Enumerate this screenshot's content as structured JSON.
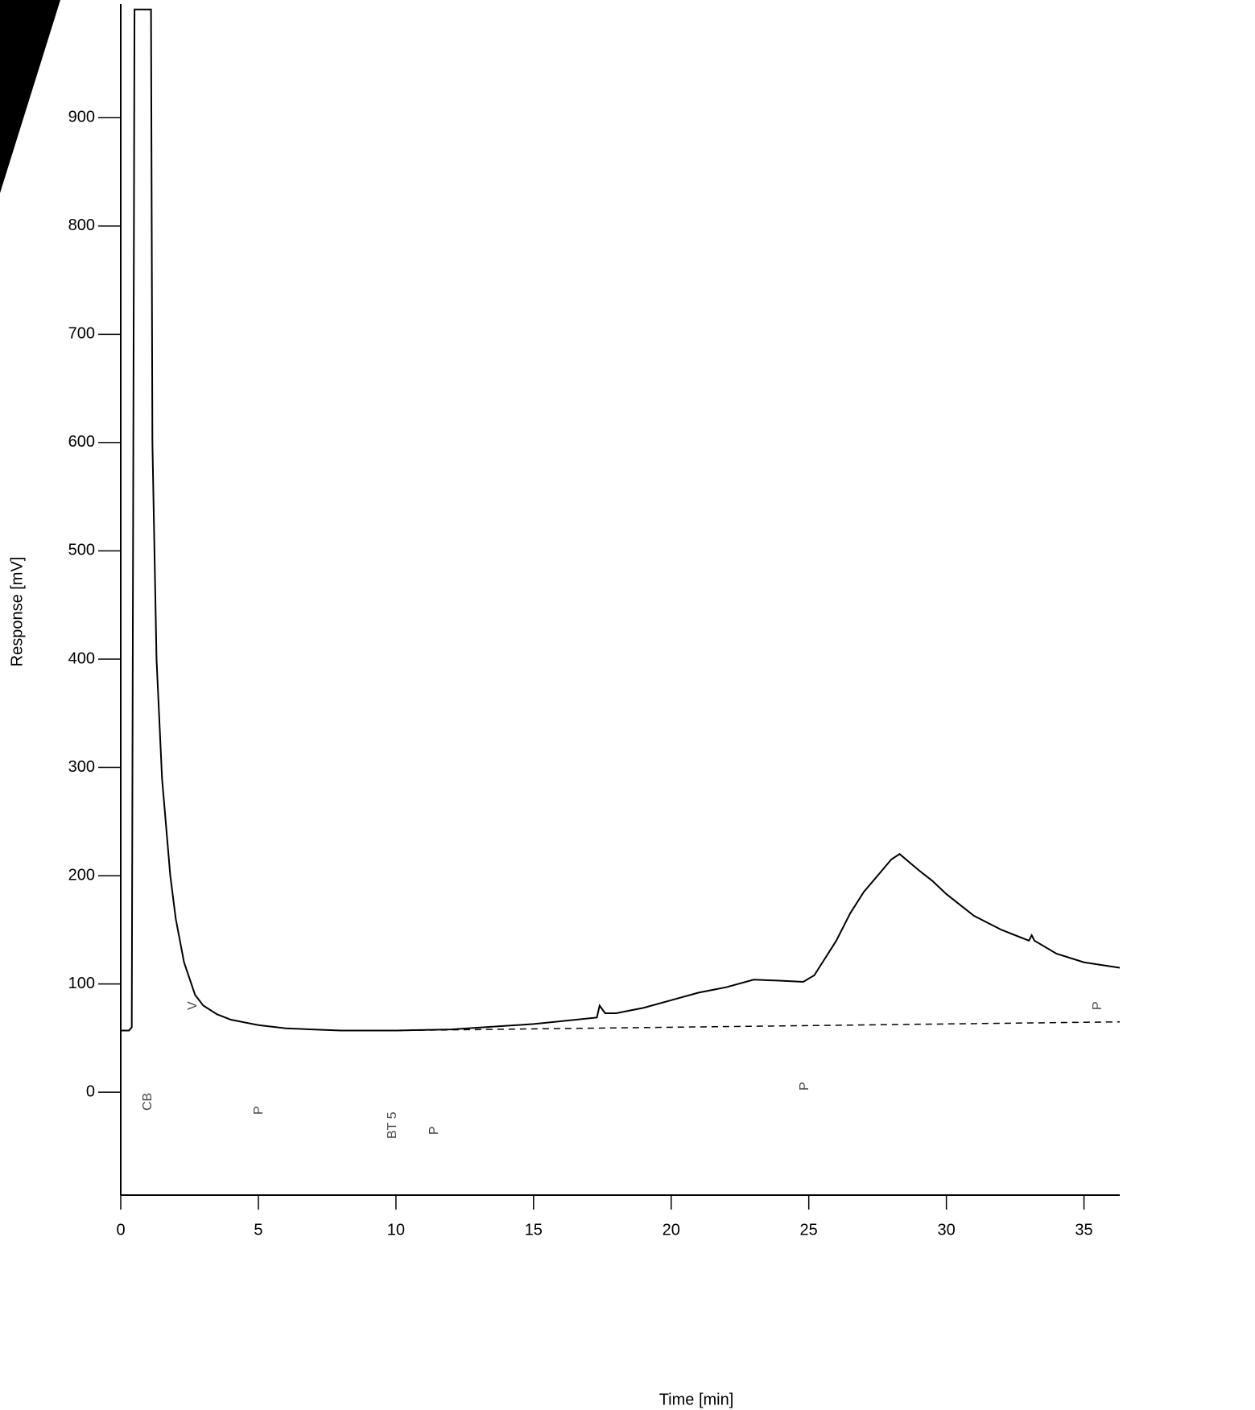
{
  "chart_data": {
    "type": "line",
    "x_label": "Time [min]",
    "y_label": "Response [mV]",
    "xlim": [
      0,
      36.3
    ],
    "ylim": [
      -95,
      1005
    ],
    "xticks": [
      0,
      5,
      10,
      15,
      20,
      25,
      30,
      35
    ],
    "yticks": [
      0,
      100,
      200,
      300,
      400,
      500,
      600,
      700,
      800,
      900
    ],
    "annotations": [
      "CB",
      "V",
      "P",
      "BT 5",
      "P",
      "P",
      "P"
    ],
    "series": [
      {
        "color": "#000000",
        "dashed": false,
        "x": [
          0,
          0.3,
          0.4,
          0.5,
          0.55,
          1.1,
          1.15,
          1.3,
          1.5,
          1.8,
          2.0,
          2.3,
          2.7,
          3.0,
          3.5,
          4,
          5,
          6,
          8,
          10,
          12,
          15,
          17.3,
          17.4,
          17.6,
          18,
          19,
          20,
          21,
          22,
          23,
          24,
          24.8,
          25.2,
          25.5,
          26,
          26.5,
          27,
          27.5,
          28,
          28.3,
          29,
          29.5,
          30,
          31,
          32,
          33,
          33.1,
          33.2,
          34,
          35,
          36.3
        ],
        "values": [
          57,
          57,
          60,
          1000,
          1000,
          1000,
          600,
          400,
          290,
          200,
          160,
          120,
          90,
          80,
          72,
          67,
          62,
          59,
          57,
          57,
          58,
          63,
          69,
          80,
          73,
          73,
          78,
          85,
          92,
          97,
          104,
          103,
          102,
          108,
          120,
          140,
          165,
          185,
          200,
          215,
          220,
          205,
          195,
          183,
          163,
          150,
          140,
          145,
          140,
          128,
          120,
          115
        ]
      },
      {
        "color": "#000000",
        "dashed": true,
        "x": [
          10,
          36.3
        ],
        "values": [
          57,
          65
        ]
      }
    ]
  }
}
